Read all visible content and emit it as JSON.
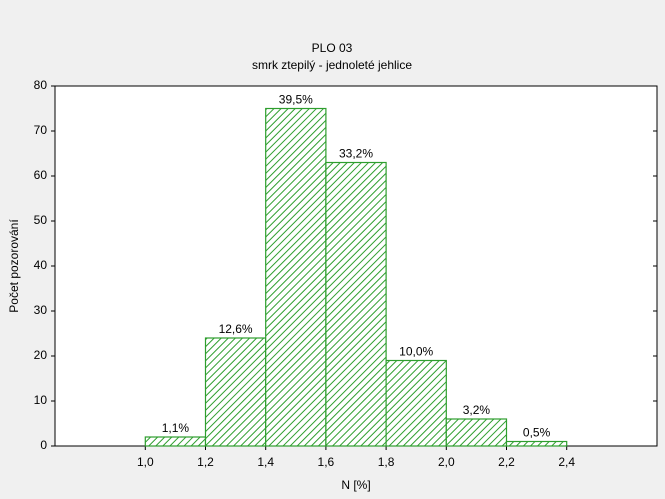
{
  "chart_data": {
    "type": "histogram",
    "title": "PLO 03",
    "subtitle": "smrk ztepilý - jednoleté jehlice",
    "x_label": "N [%]",
    "y_label": "Počet pozorování",
    "bins": [
      1.0,
      1.2,
      1.4,
      1.6,
      1.8,
      2.0,
      2.2,
      2.4
    ],
    "values": [
      2,
      24,
      75,
      63,
      19,
      6,
      1
    ],
    "value_labels": [
      "1,1%",
      "12,6%",
      "39,5%",
      "33,2%",
      "10,0%",
      "3,2%",
      "0,5%"
    ],
    "color": "#2e9e2e",
    "xlim": [
      0.7,
      2.7
    ],
    "xticks": [
      {
        "value": 1.0,
        "label": "1,0"
      },
      {
        "value": 1.2,
        "label": "1,2"
      },
      {
        "value": 1.4,
        "label": "1,4"
      },
      {
        "value": 1.6,
        "label": "1,6"
      },
      {
        "value": 1.8,
        "label": "1,8"
      },
      {
        "value": 2.0,
        "label": "2,0"
      },
      {
        "value": 2.2,
        "label": "2,2"
      },
      {
        "value": 2.4,
        "label": "2,4"
      }
    ],
    "ylim": [
      0,
      80
    ],
    "yticks": [
      0,
      10,
      20,
      30,
      40,
      50,
      60,
      70,
      80
    ]
  }
}
